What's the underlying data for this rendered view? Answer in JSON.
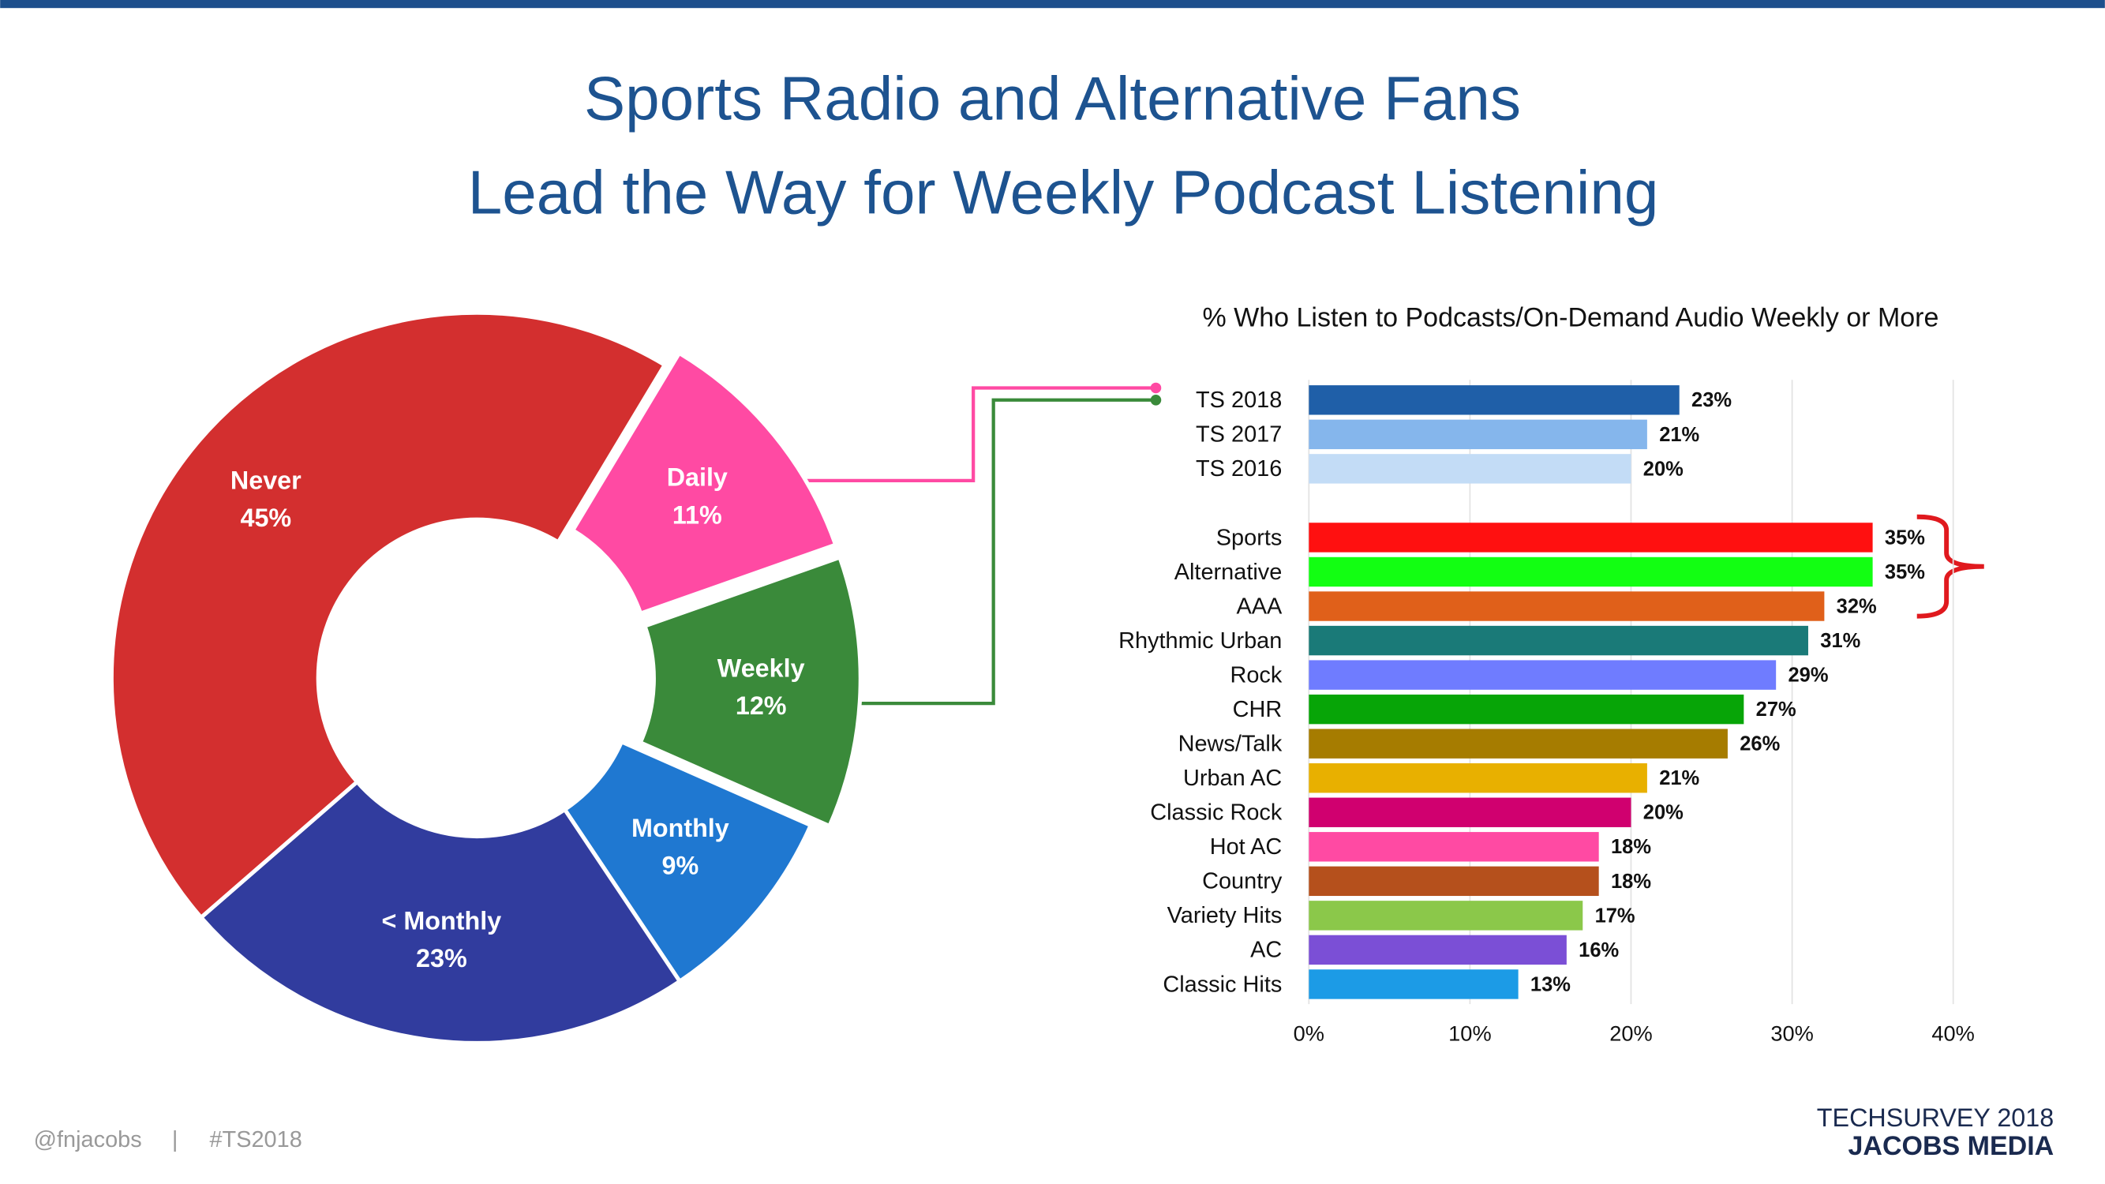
{
  "title": [
    "Sports Radio and Alternative Fans",
    "Lead the Way for Weekly Podcast Listening"
  ],
  "footer": {
    "handle": "@fnjacobs",
    "separator": "|",
    "hashtag": "#TS2018",
    "logo_line1": "TECHSURVEY 2018",
    "logo_line2": "JACOBS MEDIA"
  },
  "chart_data": [
    {
      "type": "pie",
      "categories": [
        "Daily",
        "Weekly",
        "Monthly",
        "< Monthly",
        "Never"
      ],
      "values": [
        11,
        12,
        9,
        23,
        45
      ],
      "value_labels": [
        "11%",
        "12%",
        "9%",
        "23%",
        "45%"
      ],
      "colors": [
        "#ff4aa3",
        "#3a8a3a",
        "#1f78d1",
        "#313c9e",
        "#d32f2f"
      ]
    },
    {
      "type": "bar",
      "title": "% Who Listen to Podcasts/On-Demand Audio Weekly or More",
      "orientation": "horizontal",
      "categories": [
        "TS 2018",
        "TS 2017",
        "TS 2016",
        null,
        "Sports",
        "Alternative",
        "AAA",
        "Rhythmic Urban",
        "Rock",
        "CHR",
        "News/Talk",
        "Urban AC",
        "Classic Rock",
        "Hot AC",
        "Country",
        "Variety Hits",
        "AC",
        "Classic Hits"
      ],
      "values": [
        23,
        21,
        20,
        null,
        35,
        35,
        32,
        31,
        29,
        27,
        26,
        21,
        20,
        18,
        18,
        17,
        16,
        13
      ],
      "value_labels": [
        "23%",
        "21%",
        "20%",
        null,
        "35%",
        "35%",
        "32%",
        "31%",
        "29%",
        "27%",
        "26%",
        "21%",
        "20%",
        "18%",
        "18%",
        "17%",
        "16%",
        "13%"
      ],
      "colors": [
        "#1f5fa8",
        "#85b6ec",
        "#c3dcf6",
        null,
        "#ff1010",
        "#12ff12",
        "#e0601a",
        "#1a7a78",
        "#6f7cff",
        "#07a507",
        "#a67c00",
        "#e8b000",
        "#d0006f",
        "#ff4aa3",
        "#b5501c",
        "#8bc84a",
        "#7b4fd6",
        "#1c9be6"
      ],
      "xlim": [
        0,
        40
      ],
      "xticks": [
        {
          "value": 0,
          "label": "0%"
        },
        {
          "value": 10,
          "label": "10%"
        },
        {
          "value": 20,
          "label": "20%"
        },
        {
          "value": 30,
          "label": "30%"
        },
        {
          "value": 40,
          "label": "40%"
        }
      ],
      "grid": true
    }
  ]
}
